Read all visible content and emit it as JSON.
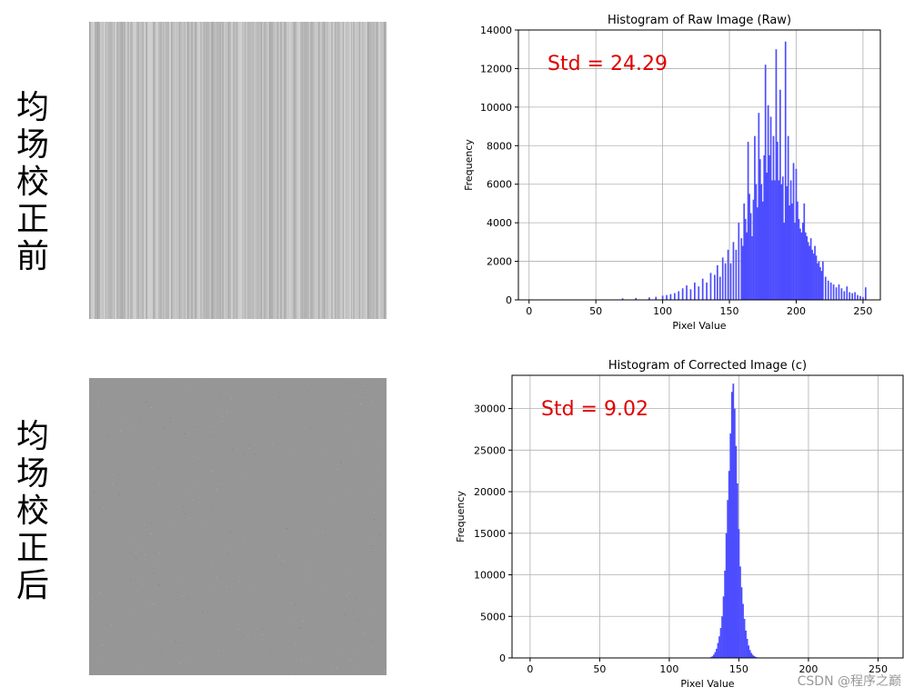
{
  "labels": {
    "before": [
      "均",
      "场",
      "校",
      "正",
      "前"
    ],
    "after": [
      "均",
      "场",
      "校",
      "正",
      "后"
    ]
  },
  "watermark": "CSDN @程序之巅",
  "colors": {
    "bars": "#4d4dff",
    "annotation": "#e00000",
    "grid": "#b0b0b0"
  },
  "chart_data": [
    {
      "type": "bar",
      "title": "Histogram of Raw Image (Raw)",
      "xlabel": "Pixel Value",
      "ylabel": "Frequency",
      "annotation": "Std = 24.29",
      "xlim": [
        -8,
        263
      ],
      "ylim": [
        0,
        14000
      ],
      "xticks": [
        0,
        50,
        100,
        150,
        200,
        250
      ],
      "xtick_labels": [
        "0",
        "50",
        "100",
        "150",
        "200",
        "250"
      ],
      "yticks": [
        0,
        2000,
        4000,
        6000,
        8000,
        10000,
        12000,
        14000
      ],
      "ytick_labels": [
        "0",
        "2000",
        "4000",
        "6000",
        "8000",
        "10000",
        "12000",
        "14000"
      ],
      "grid": true,
      "x": [
        70,
        80,
        90,
        95,
        100,
        103,
        106,
        109,
        112,
        115,
        118,
        121,
        124,
        127,
        130,
        133,
        136,
        139,
        141,
        143,
        145,
        147,
        149,
        151,
        153,
        155,
        157,
        159,
        160,
        161,
        162,
        163,
        164,
        165,
        166,
        167,
        168,
        169,
        170,
        171,
        172,
        173,
        174,
        175,
        176,
        177,
        178,
        179,
        180,
        181,
        182,
        183,
        184,
        185,
        186,
        187,
        188,
        189,
        190,
        191,
        192,
        193,
        194,
        195,
        196,
        197,
        198,
        199,
        200,
        201,
        202,
        203,
        204,
        205,
        206,
        207,
        208,
        209,
        210,
        211,
        212,
        213,
        214,
        215,
        216,
        217,
        218,
        219,
        220,
        222,
        224,
        226,
        228,
        230,
        232,
        234,
        236,
        238,
        240,
        242,
        244,
        246,
        248,
        250,
        252
      ],
      "values": [
        80,
        100,
        130,
        160,
        220,
        250,
        300,
        350,
        450,
        600,
        750,
        550,
        900,
        700,
        1100,
        900,
        1400,
        1300,
        1800,
        1200,
        2200,
        1900,
        2600,
        1900,
        3000,
        2600,
        4000,
        3200,
        2800,
        5000,
        4200,
        3500,
        8200,
        5500,
        4500,
        3300,
        5200,
        8500,
        6000,
        4800,
        9700,
        7300,
        6000,
        5100,
        7500,
        12200,
        6600,
        10100,
        7500,
        9500,
        6200,
        8500,
        6200,
        13000,
        8200,
        6200,
        10900,
        6000,
        6400,
        4000,
        13400,
        5900,
        8500,
        4900,
        6200,
        5000,
        7100,
        4000,
        6800,
        5100,
        4200,
        3700,
        3500,
        4000,
        5000,
        3500,
        3300,
        3000,
        2800,
        3200,
        2600,
        2400,
        2800,
        2300,
        1900,
        2000,
        1700,
        1500,
        2000,
        1200,
        1000,
        900,
        800,
        650,
        800,
        600,
        450,
        700,
        400,
        350,
        400,
        250,
        200,
        150,
        650
      ]
    },
    {
      "type": "bar",
      "title": "Histogram of Corrected Image (c)",
      "xlabel": "Pixel Value",
      "ylabel": "Frequency",
      "annotation": "Std = 9.02",
      "xlim": [
        -13,
        268
      ],
      "ylim": [
        0,
        34000
      ],
      "xticks": [
        0,
        50,
        100,
        150,
        200,
        250
      ],
      "xtick_labels": [
        "0",
        "50",
        "100",
        "150",
        "200",
        "250"
      ],
      "yticks": [
        0,
        5000,
        10000,
        15000,
        20000,
        25000,
        30000
      ],
      "ytick_labels": [
        "0",
        "5000",
        "10000",
        "15000",
        "20000",
        "25000",
        "30000"
      ],
      "grid": true,
      "x": [
        130,
        131,
        132,
        133,
        134,
        135,
        136,
        137,
        138,
        139,
        140,
        141,
        142,
        143,
        144,
        145,
        146,
        147,
        148,
        149,
        150,
        151,
        152,
        153,
        154,
        155,
        156,
        157,
        158,
        159,
        160,
        161,
        162,
        163,
        164,
        165
      ],
      "values": [
        100,
        200,
        400,
        700,
        1100,
        1800,
        2600,
        3600,
        5000,
        7400,
        10500,
        15000,
        19000,
        22500,
        27000,
        32000,
        33000,
        30000,
        25500,
        21000,
        15500,
        11000,
        8500,
        6500,
        4700,
        3300,
        2300,
        1500,
        950,
        600,
        380,
        220,
        130,
        80,
        40,
        20
      ]
    }
  ]
}
